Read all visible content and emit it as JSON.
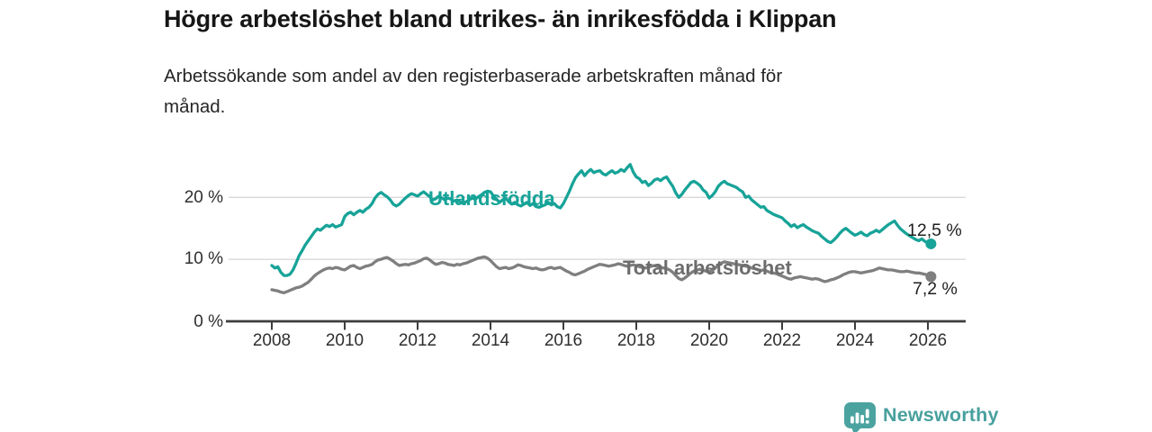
{
  "title": "Högre arbetslöshet bland utrikes- än inrikesfödda i Klippan",
  "subtitle_line1": "Arbetssökande som andel av den registerbaserade arbetskraften månad för",
  "subtitle_line2": "månad.",
  "branding": {
    "logo_text": "Newsworthy",
    "logo_icon": "bar-chart-speech-bubble-icon",
    "logo_color": "#4ba3a0"
  },
  "colors": {
    "background": "#ffffff",
    "grid": "#d9d9d9",
    "axis": "#3d3d3d",
    "tick_text": "#2f2f2f",
    "value_text": "#1f1f1f"
  },
  "chart_data": {
    "type": "line",
    "x_unit": "monthly",
    "x_start_year": 2008.0,
    "x_step_years": 0.0833333,
    "xlim": [
      2006.8,
      2027.0
    ],
    "ylim": [
      0,
      27
    ],
    "grid": "horizontal",
    "legend_position": "inline-labels",
    "x_ticks": [
      2008,
      2010,
      2012,
      2014,
      2016,
      2018,
      2020,
      2022,
      2024,
      2026
    ],
    "y_ticks": [
      {
        "value": 0,
        "label": "0 %"
      },
      {
        "value": 10,
        "label": "10 %"
      },
      {
        "value": 20,
        "label": "20 %"
      }
    ],
    "series": [
      {
        "name": "Utlandsfödda",
        "color": "#17a398",
        "end_label": "12,5 %",
        "end_value": 12.5,
        "values": [
          9.0,
          8.6,
          8.8,
          7.9,
          7.4,
          7.4,
          7.6,
          8.3,
          9.4,
          10.6,
          11.4,
          12.3,
          13.0,
          13.7,
          14.4,
          14.9,
          14.7,
          15.1,
          15.5,
          15.3,
          15.6,
          15.2,
          15.4,
          15.6,
          16.9,
          17.4,
          17.6,
          17.2,
          17.6,
          17.9,
          17.6,
          18.1,
          18.4,
          19.0,
          19.9,
          20.5,
          20.8,
          20.4,
          20.1,
          19.6,
          18.9,
          18.6,
          18.9,
          19.4,
          19.9,
          20.3,
          20.6,
          20.4,
          20.2,
          20.6,
          20.9,
          20.5,
          20.1,
          19.6,
          19.8,
          20.2,
          19.9,
          19.6,
          19.9,
          19.7,
          19.4,
          19.6,
          19.3,
          19.0,
          19.3,
          19.6,
          19.9,
          19.7,
          20.1,
          20.4,
          20.8,
          21.0,
          20.9,
          20.2,
          19.7,
          19.2,
          19.6,
          19.9,
          19.3,
          18.9,
          19.2,
          18.8,
          18.6,
          18.9,
          19.2,
          18.7,
          19.0,
          18.5,
          18.4,
          18.6,
          18.8,
          19.2,
          18.8,
          19.0,
          18.5,
          18.3,
          19.0,
          20.0,
          21.0,
          22.2,
          23.2,
          23.8,
          24.3,
          23.5,
          24.1,
          24.5,
          24.0,
          24.2,
          24.3,
          23.8,
          23.6,
          24.0,
          24.3,
          23.9,
          24.1,
          24.5,
          24.2,
          24.8,
          25.3,
          24.1,
          23.3,
          23.0,
          22.4,
          22.6,
          21.9,
          22.3,
          22.8,
          23.0,
          22.7,
          23.1,
          23.3,
          22.5,
          21.8,
          20.7,
          20.0,
          20.5,
          21.2,
          21.8,
          22.4,
          22.6,
          22.3,
          21.9,
          21.2,
          20.8,
          19.9,
          20.3,
          20.9,
          21.8,
          22.3,
          22.6,
          22.2,
          22.0,
          21.8,
          21.6,
          21.2,
          20.9,
          20.0,
          20.2,
          19.6,
          19.2,
          18.8,
          18.4,
          18.5,
          17.9,
          17.6,
          17.3,
          17.1,
          16.9,
          16.7,
          16.2,
          15.8,
          15.3,
          15.6,
          15.1,
          15.4,
          15.6,
          15.2,
          14.9,
          14.6,
          14.4,
          14.2,
          13.7,
          13.3,
          12.9,
          12.7,
          13.1,
          13.6,
          14.2,
          14.7,
          15.0,
          14.6,
          14.2,
          13.9,
          14.1,
          14.4,
          14.0,
          13.8,
          14.2,
          14.4,
          14.7,
          14.4,
          14.8,
          15.2,
          15.6,
          15.9,
          16.2,
          15.5,
          14.9,
          14.5,
          14.1,
          13.8,
          13.5,
          13.2,
          13.0,
          13.3,
          12.9,
          12.7,
          12.5
        ]
      },
      {
        "name": "Total arbetslöshet",
        "color": "#7f7f7f",
        "end_label": "7,2 %",
        "end_value": 7.2,
        "values": [
          5.1,
          5.0,
          4.9,
          4.7,
          4.6,
          4.8,
          5.0,
          5.2,
          5.4,
          5.5,
          5.7,
          6.0,
          6.3,
          6.8,
          7.3,
          7.7,
          8.0,
          8.3,
          8.5,
          8.6,
          8.5,
          8.7,
          8.6,
          8.4,
          8.3,
          8.6,
          8.9,
          9.0,
          8.7,
          8.5,
          8.7,
          8.9,
          9.0,
          9.2,
          9.6,
          9.9,
          10.0,
          10.2,
          10.3,
          10.0,
          9.7,
          9.3,
          9.0,
          9.1,
          9.2,
          9.1,
          9.3,
          9.4,
          9.6,
          9.8,
          10.1,
          10.2,
          9.9,
          9.5,
          9.2,
          9.3,
          9.5,
          9.4,
          9.2,
          9.1,
          9.0,
          9.2,
          9.1,
          9.3,
          9.4,
          9.6,
          9.8,
          10.0,
          10.2,
          10.3,
          10.4,
          10.2,
          9.8,
          9.3,
          8.8,
          8.5,
          8.6,
          8.7,
          8.5,
          8.6,
          8.8,
          9.1,
          9.0,
          8.8,
          8.7,
          8.6,
          8.5,
          8.6,
          8.4,
          8.3,
          8.4,
          8.6,
          8.7,
          8.5,
          8.6,
          8.7,
          8.4,
          8.1,
          7.9,
          7.6,
          7.5,
          7.7,
          7.9,
          8.1,
          8.4,
          8.6,
          8.8,
          9.0,
          9.2,
          9.1,
          9.0,
          8.9,
          9.0,
          9.1,
          9.3,
          9.2,
          9.0,
          8.9,
          9.0,
          9.1,
          9.0,
          8.8,
          8.7,
          8.6,
          8.7,
          8.9,
          9.0,
          8.8,
          8.7,
          8.6,
          8.5,
          8.3,
          7.9,
          7.4,
          6.9,
          6.7,
          7.0,
          7.4,
          7.8,
          8.1,
          8.3,
          8.4,
          8.2,
          8.1,
          8.0,
          8.2,
          8.6,
          9.1,
          9.4,
          9.6,
          9.5,
          9.4,
          9.3,
          9.2,
          9.1,
          9.0,
          8.9,
          8.8,
          8.6,
          8.5,
          8.3,
          8.2,
          8.3,
          8.1,
          7.9,
          7.8,
          7.7,
          7.5,
          7.3,
          7.1,
          6.9,
          6.8,
          7.0,
          7.1,
          7.2,
          7.1,
          7.0,
          6.9,
          6.8,
          6.9,
          6.8,
          6.6,
          6.4,
          6.5,
          6.7,
          6.8,
          7.0,
          7.2,
          7.5,
          7.7,
          7.9,
          8.0,
          8.0,
          7.9,
          7.8,
          7.9,
          8.0,
          8.1,
          8.2,
          8.4,
          8.6,
          8.5,
          8.4,
          8.3,
          8.3,
          8.2,
          8.1,
          8.0,
          8.0,
          8.1,
          8.0,
          7.9,
          7.8,
          7.8,
          7.7,
          7.6,
          7.4,
          7.2
        ]
      }
    ]
  }
}
